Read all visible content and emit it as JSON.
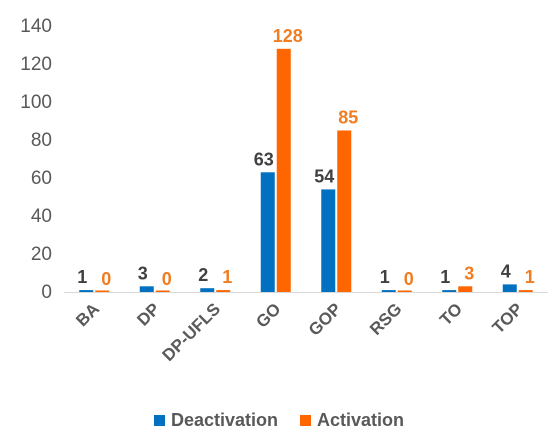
{
  "chart_data": {
    "type": "bar",
    "categories": [
      "BA",
      "DP",
      "DP-UFLS",
      "GO",
      "GOP",
      "RSG",
      "TO",
      "TOP"
    ],
    "series": [
      {
        "name": "Deactivation",
        "color": "#0070C0",
        "label_color": "#404040",
        "values": [
          1,
          3,
          2,
          63,
          54,
          1,
          1,
          4
        ]
      },
      {
        "name": "Activation",
        "color": "#FF6600",
        "label_color": "#F07D22",
        "values": [
          0,
          0,
          1,
          128,
          85,
          0,
          3,
          1
        ]
      }
    ],
    "ylim": [
      0,
      140
    ],
    "yticks": [
      0,
      20,
      40,
      60,
      80,
      100,
      120,
      140
    ],
    "grid": false,
    "legend_position": "bottom",
    "title": "",
    "xlabel": "",
    "ylabel": ""
  }
}
